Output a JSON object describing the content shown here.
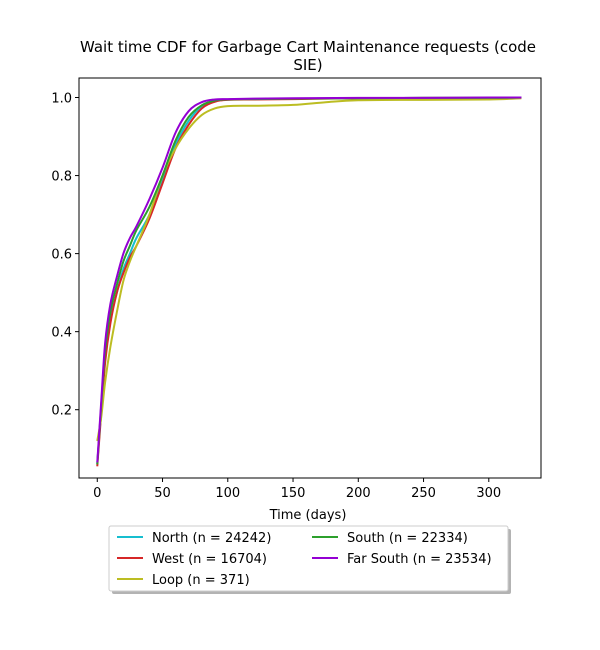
{
  "chart_data": {
    "type": "line",
    "title_lines": [
      "Wait time CDF for Garbage Cart Maintenance  requests (code",
      "SIE)"
    ],
    "xlabel": "Time (days)",
    "ylabel": "",
    "xlim": [
      -14,
      340
    ],
    "ylim": [
      0.025,
      1.05
    ],
    "xticks": [
      0,
      50,
      100,
      150,
      200,
      250,
      300
    ],
    "yticks": [
      0.2,
      0.4,
      0.6,
      0.8,
      1.0
    ],
    "grid": false,
    "legend_position": "below-center",
    "legend_columns": 2,
    "series": [
      {
        "name": "North (n = 24242)",
        "color": "#17becf",
        "x": [
          0,
          3,
          6,
          10,
          15,
          20,
          25,
          30,
          40,
          50,
          60,
          70,
          80,
          90,
          100,
          120,
          150,
          200,
          250,
          300,
          325
        ],
        "y": [
          0.06,
          0.2,
          0.33,
          0.43,
          0.5,
          0.56,
          0.6,
          0.64,
          0.7,
          0.79,
          0.88,
          0.94,
          0.978,
          0.991,
          0.995,
          0.996,
          0.997,
          0.998,
          0.999,
          0.999,
          1.0
        ]
      },
      {
        "name": "West (n = 16704)",
        "color": "#d62728",
        "x": [
          0,
          3,
          6,
          10,
          15,
          20,
          25,
          30,
          40,
          50,
          60,
          70,
          80,
          90,
          100,
          120,
          150,
          200,
          250,
          300,
          325
        ],
        "y": [
          0.055,
          0.19,
          0.32,
          0.42,
          0.5,
          0.55,
          0.59,
          0.62,
          0.69,
          0.78,
          0.87,
          0.93,
          0.972,
          0.989,
          0.994,
          0.995,
          0.996,
          0.998,
          0.999,
          0.999,
          1.0
        ]
      },
      {
        "name": "Loop (n = 371)",
        "color": "#bcbd22",
        "x": [
          0,
          3,
          6,
          10,
          15,
          20,
          25,
          30,
          40,
          50,
          60,
          70,
          80,
          90,
          100,
          120,
          150,
          175,
          200,
          250,
          300,
          325
        ],
        "y": [
          0.12,
          0.18,
          0.27,
          0.36,
          0.45,
          0.53,
          0.58,
          0.62,
          0.7,
          0.8,
          0.87,
          0.92,
          0.955,
          0.972,
          0.978,
          0.979,
          0.981,
          0.988,
          0.993,
          0.994,
          0.995,
          0.998
        ]
      },
      {
        "name": "South (n = 22334)",
        "color": "#2ca02c",
        "x": [
          0,
          3,
          6,
          10,
          15,
          20,
          25,
          30,
          40,
          50,
          60,
          70,
          80,
          90,
          100,
          120,
          150,
          200,
          250,
          300,
          325
        ],
        "y": [
          0.06,
          0.21,
          0.35,
          0.45,
          0.52,
          0.58,
          0.62,
          0.66,
          0.72,
          0.8,
          0.89,
          0.95,
          0.98,
          0.992,
          0.995,
          0.996,
          0.997,
          0.998,
          0.999,
          0.999,
          1.0
        ]
      },
      {
        "name": "Far South (n = 23534)",
        "color": "#9400d3",
        "x": [
          0,
          3,
          6,
          10,
          15,
          20,
          25,
          30,
          40,
          50,
          60,
          70,
          80,
          90,
          100,
          120,
          150,
          200,
          250,
          300,
          325
        ],
        "y": [
          0.065,
          0.22,
          0.37,
          0.47,
          0.54,
          0.6,
          0.64,
          0.67,
          0.74,
          0.82,
          0.91,
          0.965,
          0.988,
          0.995,
          0.996,
          0.997,
          0.998,
          0.999,
          0.999,
          1.0,
          1.0
        ]
      }
    ]
  }
}
